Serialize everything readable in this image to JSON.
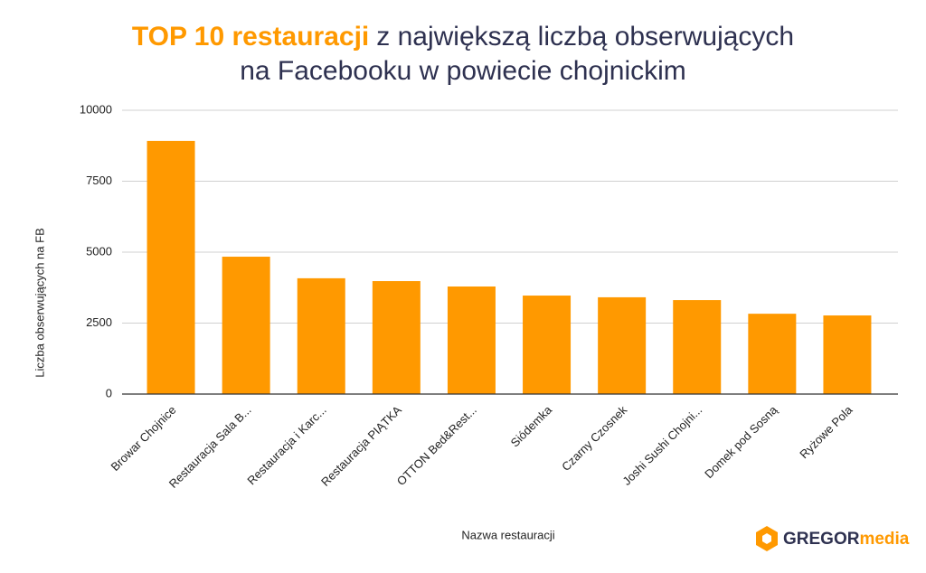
{
  "chart_data": {
    "type": "bar",
    "title": {
      "highlight": "TOP 10 restauracji",
      "line1": "z największą liczbą obserwujących",
      "line2": "na Facebooku w powiecie chojnickim"
    },
    "x_label": "Nazwa restauracji",
    "y_label": "Liczba obserwujących na FB",
    "categories": [
      "Browar Chojnice",
      "Restauracja Sala B...",
      "Restauracja i Karc...",
      "Restauracja PIĄTKA",
      "OTTON Bed&Rest...",
      "Siódemka",
      "Czarny Czosnek",
      "Joshi Sushi Chojni...",
      "Domek pod Sosną",
      "Ryżowe Pola"
    ],
    "values": [
      8920,
      4840,
      4080,
      3980,
      3790,
      3470,
      3410,
      3310,
      2830,
      2770
    ],
    "color": "#ff9900",
    "ylim": [
      0,
      10000
    ],
    "yticks": [
      0,
      2500,
      5000,
      7500,
      10000
    ],
    "grid": true
  },
  "logo": {
    "part1": "GREGOR",
    "part2": "media"
  }
}
